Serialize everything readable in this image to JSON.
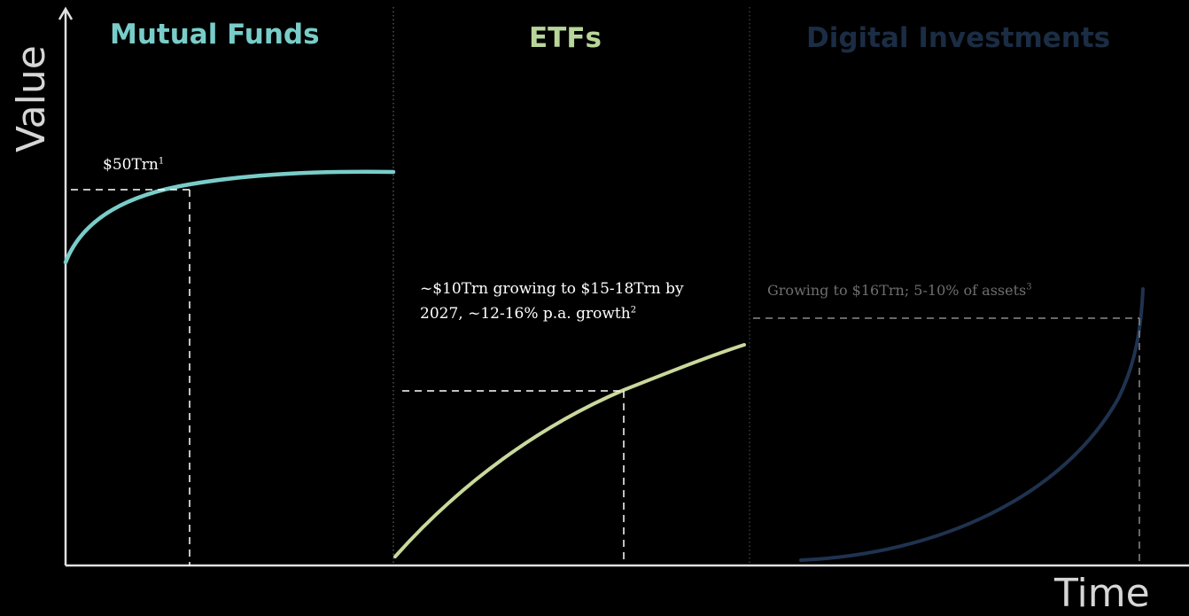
{
  "axes": {
    "y_label": "Value",
    "x_label": "Time"
  },
  "panels": [
    {
      "title": "Mutual Funds",
      "title_color": "#79cdc9",
      "curve_color": "#79cdc9",
      "annotation": "$50Trn",
      "annotation_note": "1"
    },
    {
      "title": "ETFs",
      "title_color": "#b9d69a",
      "curve_color": "#c9d99c",
      "annotation_line1": "~$10Trn growing to $15-18Trn by",
      "annotation_line2": "2027, ~12-16% p.a. growth",
      "annotation_note": "2"
    },
    {
      "title": "Digital Investments",
      "title_color": "#1b2d44",
      "curve_color": "#1f3350",
      "annotation": "Growing to $16Trn; 5-10% of assets",
      "annotation_note": "3",
      "annotation_color": "#6e6e6e"
    }
  ]
}
